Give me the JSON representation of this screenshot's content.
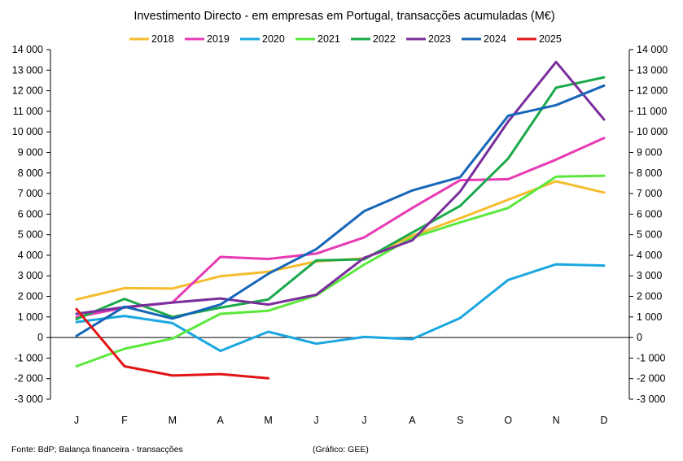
{
  "chart_data": {
    "type": "line",
    "title": "Investimento  Directo - em empresas em Portugal,  transacções acumuladas  (M€)",
    "categories": [
      "J",
      "F",
      "M",
      "A",
      "M",
      "J",
      "J",
      "A",
      "S",
      "O",
      "N",
      "D"
    ],
    "ylim": [
      -3000,
      14000
    ],
    "yticks": [
      -3000,
      -2000,
      -1000,
      0,
      1000,
      2000,
      3000,
      4000,
      5000,
      6000,
      7000,
      8000,
      9000,
      10000,
      11000,
      12000,
      13000,
      14000
    ],
    "ytick_labels": [
      "-3 000",
      "-2 000",
      "-1 000",
      "0",
      "1 000",
      "2 000",
      "3 000",
      "4 000",
      "5 000",
      "6 000",
      "7 000",
      "8 000",
      "9 000",
      "10 000",
      "11 000",
      "12 000",
      "13 000",
      "14 000"
    ],
    "yaxis_both_sides": true,
    "grid": false,
    "legend_position": "top",
    "series": [
      {
        "name": "2018",
        "color": "#f5bc2c",
        "values": [
          1850,
          2400,
          2380,
          2980,
          3200,
          3700,
          3850,
          4950,
          5800,
          6700,
          7600,
          7050
        ]
      },
      {
        "name": "2019",
        "color": "#e83ab4",
        "values": [
          1000,
          1450,
          1700,
          3920,
          3820,
          4080,
          4870,
          6300,
          7650,
          7700,
          8650,
          9700
        ]
      },
      {
        "name": "2020",
        "color": "#1aa7e0",
        "values": [
          750,
          1050,
          700,
          -650,
          280,
          -300,
          30,
          -80,
          950,
          2800,
          3560,
          3500
        ]
      },
      {
        "name": "2021",
        "color": "#5ae83c",
        "values": [
          -1400,
          -550,
          -50,
          1150,
          1300,
          2050,
          3550,
          4850,
          5600,
          6300,
          7820,
          7870
        ]
      },
      {
        "name": "2022",
        "color": "#1aaa4a",
        "values": [
          900,
          1880,
          1000,
          1450,
          1850,
          3750,
          3800,
          5100,
          6400,
          8700,
          12150,
          12650
        ]
      },
      {
        "name": "2023",
        "color": "#7a2e9c",
        "values": [
          1150,
          1480,
          1700,
          1900,
          1600,
          2080,
          3880,
          4720,
          7100,
          10500,
          13400,
          10600
        ]
      },
      {
        "name": "2024",
        "color": "#1565b8",
        "values": [
          80,
          1500,
          920,
          1600,
          3100,
          4300,
          6150,
          7150,
          7800,
          10780,
          11300,
          12250
        ]
      },
      {
        "name": "2025",
        "color": "#e31414",
        "values": [
          1380,
          -1400,
          -1850,
          -1780,
          -1980,
          null,
          null,
          null,
          null,
          null,
          null,
          null
        ]
      }
    ]
  },
  "footer": {
    "source": "Fonte: BdP; Balança financeira - transacções",
    "credit": "(Gráfico: GEE)"
  }
}
